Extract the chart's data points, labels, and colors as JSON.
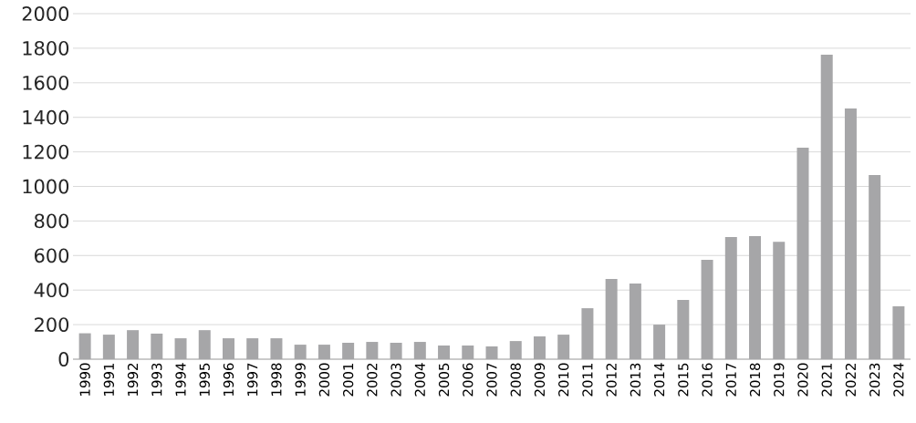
{
  "chart_data": {
    "type": "bar",
    "categories": [
      "1990",
      "1991",
      "1992",
      "1993",
      "1994",
      "1995",
      "1996",
      "1997",
      "1998",
      "1999",
      "2000",
      "2001",
      "2002",
      "2003",
      "2004",
      "2005",
      "2006",
      "2007",
      "2008",
      "2009",
      "2010",
      "2011",
      "2012",
      "2013",
      "2014",
      "2015",
      "2016",
      "2017",
      "2018",
      "2019",
      "2020",
      "2021",
      "2022",
      "2023",
      "2024"
    ],
    "values": [
      150,
      142,
      168,
      148,
      121,
      168,
      121,
      121,
      121,
      84,
      84,
      95,
      100,
      95,
      100,
      79,
      79,
      74,
      105,
      132,
      142,
      295,
      464,
      438,
      200,
      343,
      575,
      707,
      712,
      680,
      1224,
      1762,
      1451,
      1066,
      306
    ],
    "color": "#a6a6a8",
    "ylim": [
      0,
      2000
    ],
    "yticks": [
      0,
      200,
      400,
      600,
      800,
      1000,
      1200,
      1400,
      1600,
      1800,
      2000
    ],
    "grid": "y"
  }
}
